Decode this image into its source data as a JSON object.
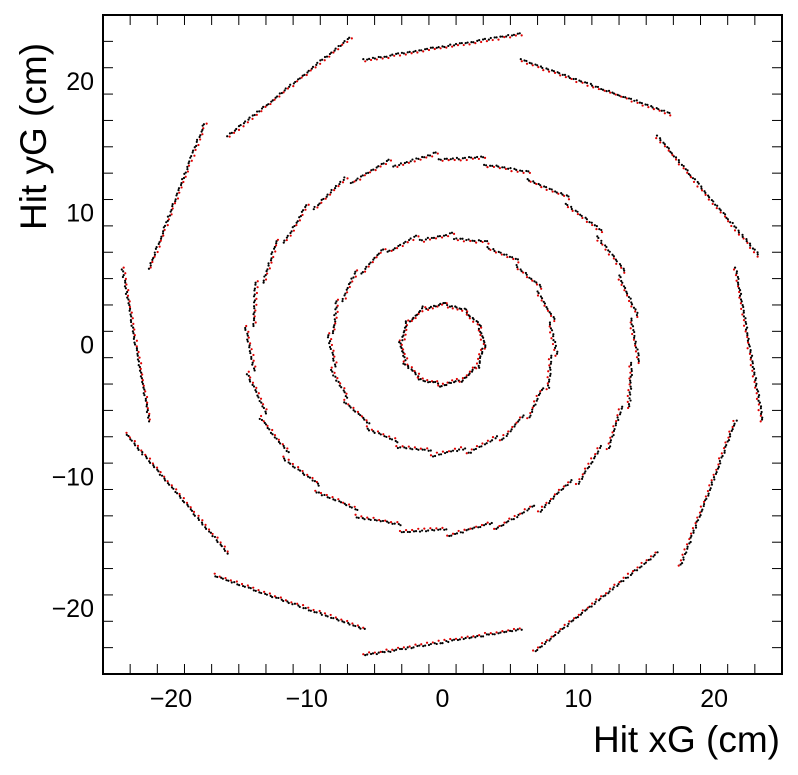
{
  "chart_data": {
    "type": "scatter",
    "title": "",
    "xlabel": "Hit xG (cm)",
    "ylabel": "Hit yG (cm)",
    "xlim": [
      -25,
      25
    ],
    "ylim": [
      -25,
      25
    ],
    "grid": false,
    "legend": "none",
    "xticks": [
      -20,
      -10,
      0,
      10,
      20
    ],
    "yticks": [
      -20,
      -10,
      0,
      10,
      20
    ],
    "xtick_labels": [
      "−20",
      "−10",
      "0",
      "10",
      "20"
    ],
    "ytick_labels": [
      "−20",
      "−10",
      "0",
      "10",
      "20"
    ],
    "colors": {
      "series_a": "#000000",
      "series_b": "#e00000",
      "frame": "#000000"
    },
    "layers": [
      {
        "radius_cm": 3.0,
        "modules": 12
      },
      {
        "radius_cm": 8.2,
        "modules": 20
      },
      {
        "radius_cm": 14.2,
        "modules": 26
      },
      {
        "radius_cm": 22.6,
        "modules": 12
      }
    ],
    "note_series": "hits drawn as black and red dots along tilted detector modules arranged in 4 concentric rings"
  }
}
